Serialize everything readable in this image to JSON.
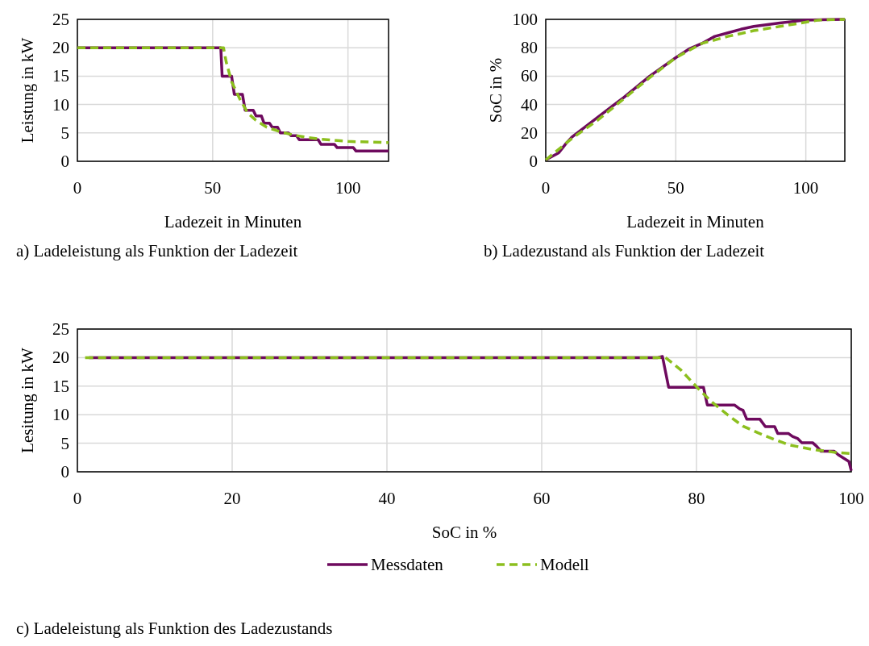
{
  "chart_data": [
    {
      "type": "line",
      "title": "a) Ladeleistung als Funktion der Ladezeit",
      "xlabel": "Ladezeit  in Minuten",
      "ylabel": "Leistung in kW",
      "xlim": [
        0,
        115
      ],
      "ylim": [
        0,
        25
      ],
      "xticks": [
        0,
        50,
        100
      ],
      "yticks": [
        0,
        5,
        10,
        15,
        20,
        25
      ],
      "grid": true,
      "series": [
        {
          "color": "#6e0a5e",
          "line_style": "solid",
          "x": [
            0,
            53,
            53.5,
            57,
            58,
            61,
            62,
            65,
            66,
            68,
            69,
            71,
            72,
            74,
            75,
            78,
            79,
            81,
            82,
            89,
            90,
            95,
            96,
            102,
            103,
            115
          ],
          "values": [
            20,
            20,
            15,
            15,
            11.8,
            11.8,
            9,
            9,
            8,
            8,
            6.7,
            6.7,
            6,
            6,
            5,
            5,
            4.5,
            4.5,
            3.8,
            3.8,
            3,
            3,
            2.4,
            2.4,
            1.8,
            1.8
          ]
        },
        {
          "color": "#8cbf1e",
          "line_style": "dashed",
          "x": [
            0,
            54,
            55,
            57,
            60,
            63,
            66,
            70,
            75,
            80,
            85,
            90,
            100,
            115
          ],
          "values": [
            20,
            20,
            17.5,
            14,
            11,
            8.5,
            7.2,
            6,
            5.2,
            4.6,
            4.2,
            3.9,
            3.5,
            3.3
          ]
        }
      ]
    },
    {
      "type": "line",
      "title": "b) Ladezustand als Funktion der Ladezeit",
      "xlabel": "Ladezeit  in Minuten",
      "ylabel": "SoC in %",
      "xlim": [
        0,
        115
      ],
      "ylim": [
        0,
        100
      ],
      "xticks": [
        0,
        50,
        100
      ],
      "yticks": [
        0,
        20,
        40,
        60,
        80,
        100
      ],
      "grid": true,
      "series": [
        {
          "color": "#6e0a5e",
          "line_style": "solid",
          "x": [
            0,
            5,
            8,
            10,
            20,
            30,
            40,
            50,
            55,
            60,
            65,
            70,
            75,
            80,
            90,
            100,
            115
          ],
          "values": [
            1,
            6,
            13,
            17,
            31,
            45,
            60,
            73,
            79,
            83,
            88,
            90.5,
            93,
            95,
            97.5,
            99.5,
            100
          ]
        },
        {
          "color": "#8cbf1e",
          "line_style": "dashed",
          "x": [
            0,
            10,
            20,
            30,
            40,
            50,
            60,
            70,
            80,
            90,
            100,
            105,
            115
          ],
          "values": [
            1,
            16,
            29,
            44,
            59,
            73,
            83,
            88,
            92,
            95,
            98,
            99.5,
            100
          ]
        }
      ]
    },
    {
      "type": "line",
      "title": "c) Ladeleistung als Funktion des Ladezustands",
      "xlabel": "SoC in %",
      "ylabel": "Lesitung in kW",
      "xlim": [
        0,
        100
      ],
      "ylim": [
        0,
        25
      ],
      "xticks": [
        0,
        20,
        40,
        60,
        80,
        100
      ],
      "yticks": [
        0,
        5,
        10,
        15,
        20,
        25
      ],
      "grid": true,
      "legend": "bottom",
      "series": [
        {
          "name": "Messdaten",
          "color": "#6e0a5e",
          "line_style": "solid",
          "x": [
            1.5,
            75,
            75.6,
            76.4,
            80.9,
            81.4,
            84.9,
            85.6,
            86,
            86.5,
            88.2,
            88.9,
            90.1,
            90.5,
            91.9,
            92.4,
            93.1,
            93.6,
            95,
            95.5,
            96.1,
            97.8,
            98.3,
            99,
            99.7,
            100
          ],
          "values": [
            20,
            20,
            20.2,
            14.8,
            14.8,
            11.7,
            11.7,
            11,
            10.8,
            9.2,
            9.2,
            7.9,
            7.9,
            6.7,
            6.7,
            6.2,
            5.8,
            5.1,
            5.1,
            4.5,
            3.6,
            3.6,
            3,
            2.4,
            1.8,
            0.2
          ]
        },
        {
          "name": "Modell",
          "color": "#8cbf1e",
          "line_style": "dashed",
          "x": [
            1,
            76,
            78,
            80,
            82,
            84,
            86,
            88,
            90,
            92,
            95,
            98,
            100
          ],
          "values": [
            20,
            20,
            17.8,
            14.9,
            12.2,
            10,
            8,
            6.8,
            5.7,
            4.7,
            3.9,
            3.4,
            3.2
          ]
        }
      ]
    }
  ]
}
